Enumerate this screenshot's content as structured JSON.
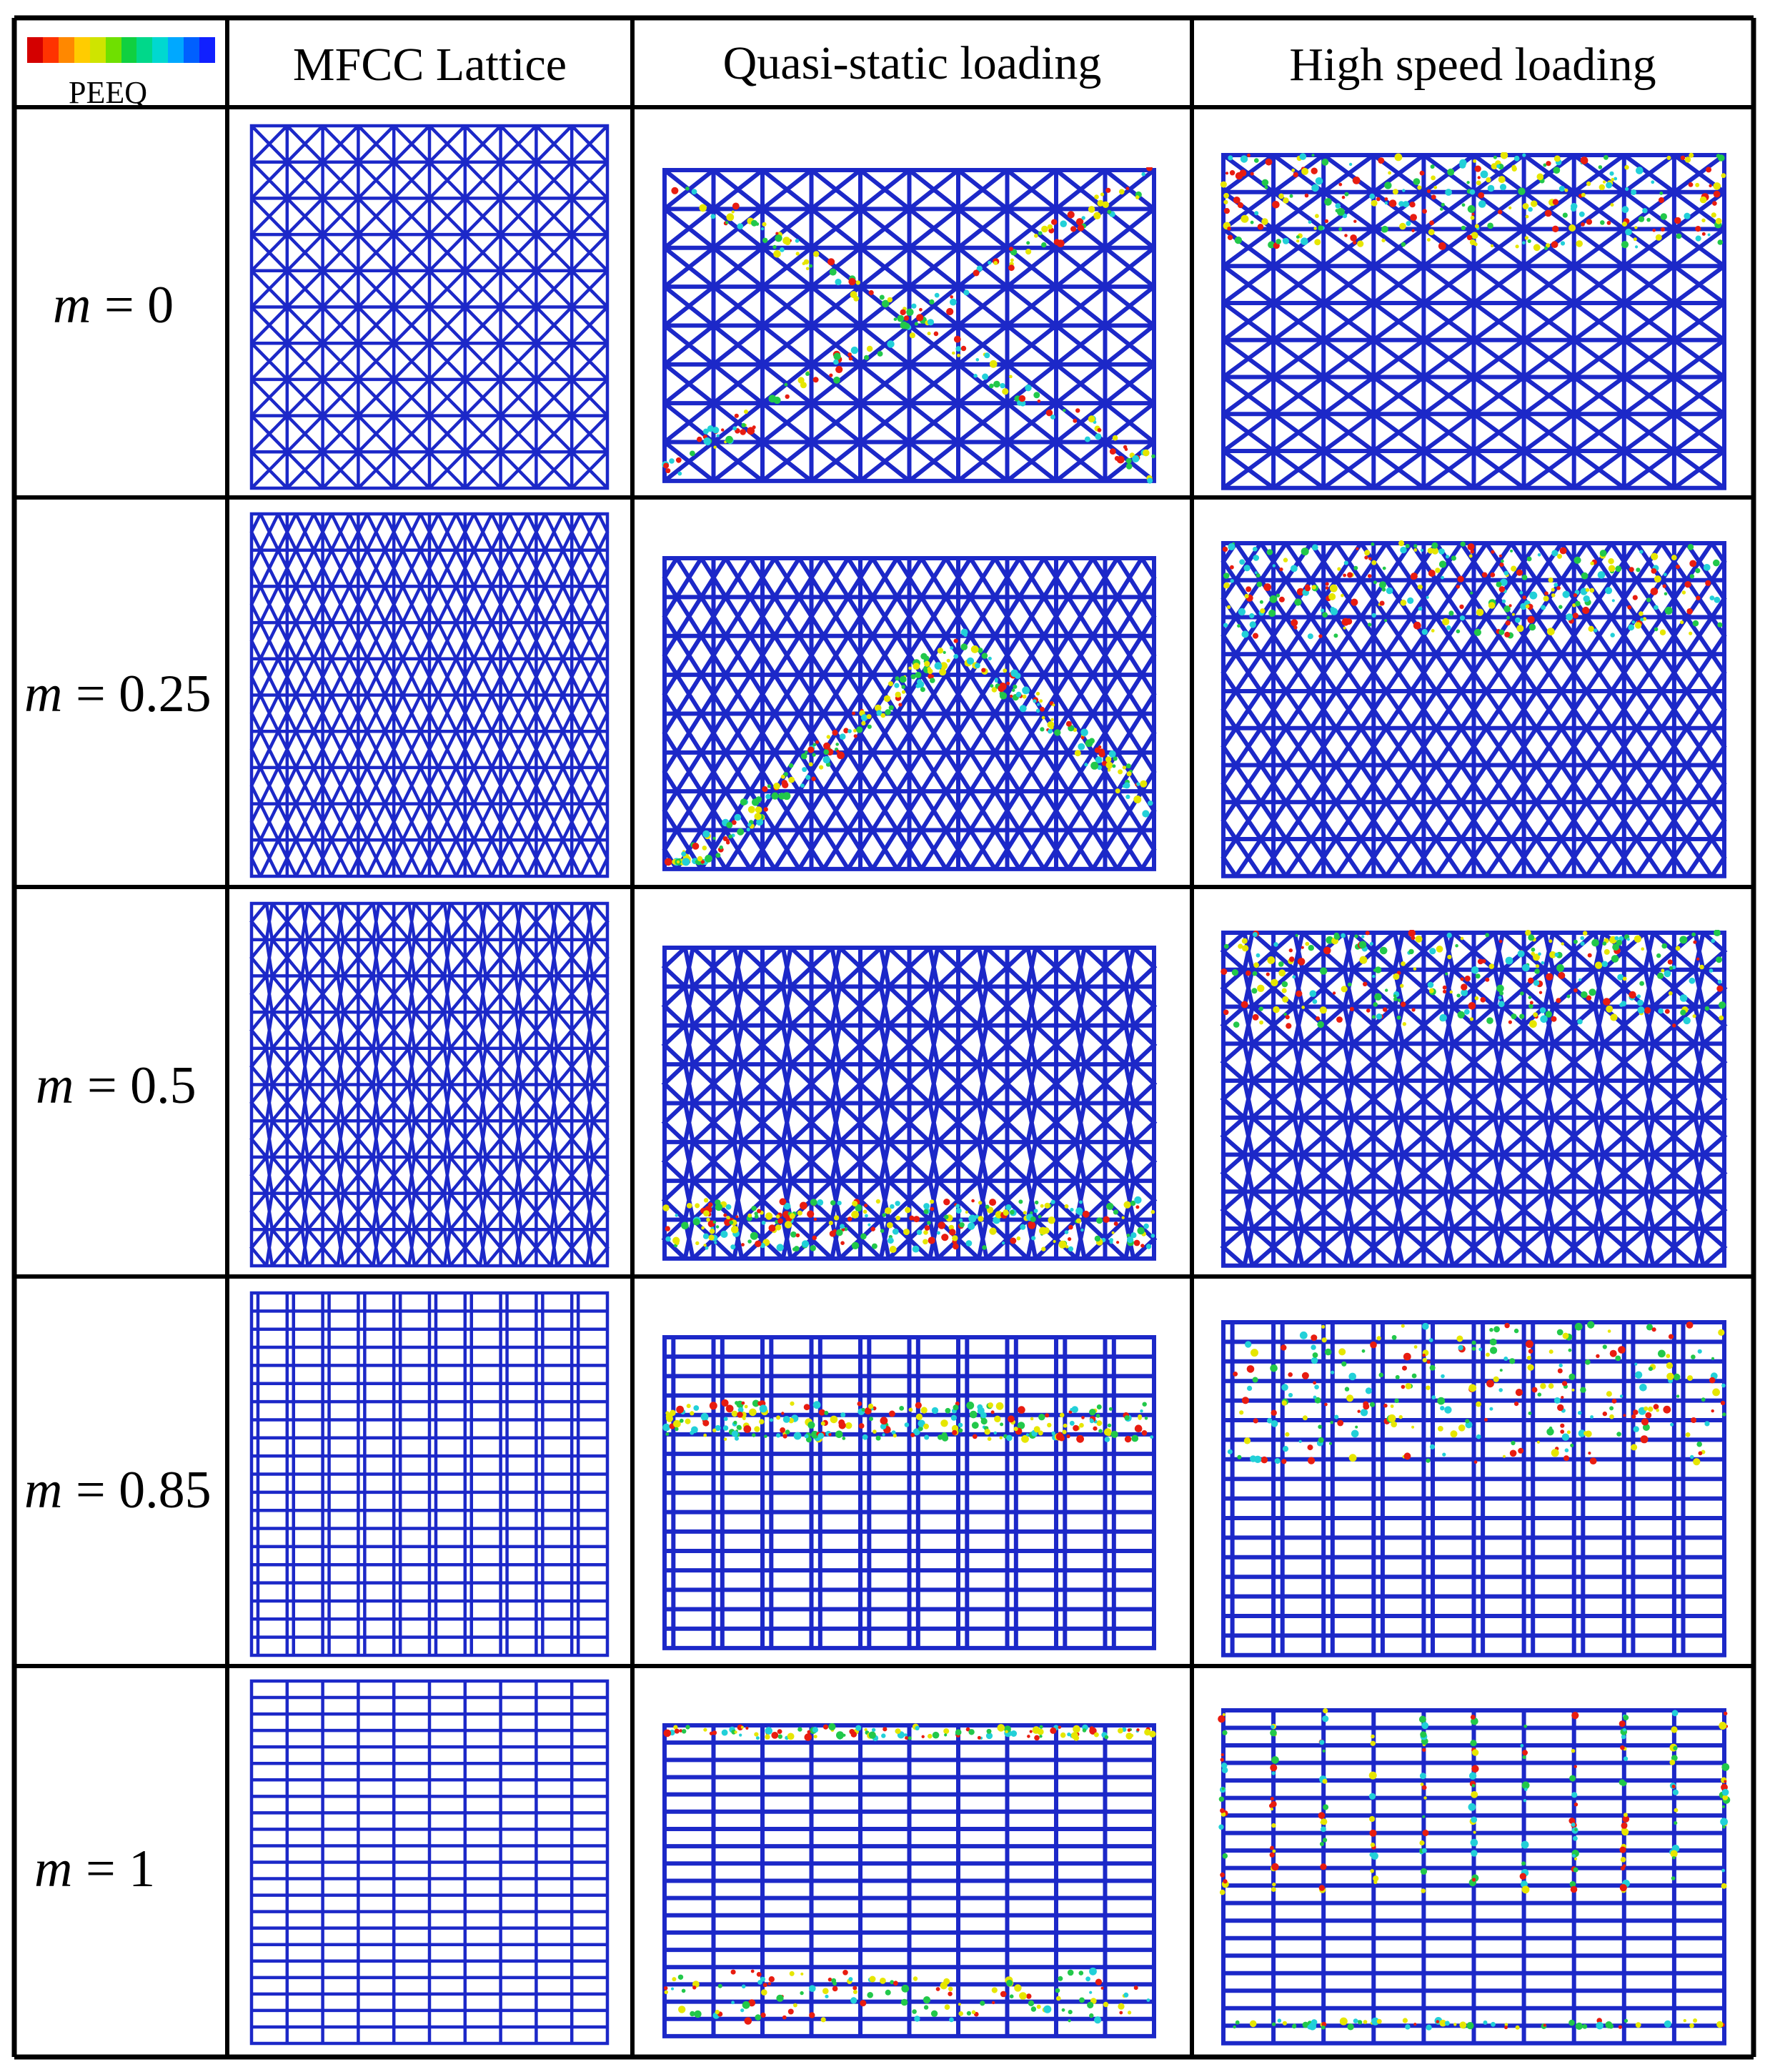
{
  "legend": {
    "label": "PEEQ",
    "colors": [
      "#d40000",
      "#ff3300",
      "#ff8800",
      "#ffcc00",
      "#cfe400",
      "#6fe000",
      "#10d040",
      "#00d88a",
      "#00d8d0",
      "#00a8ff",
      "#0060ff",
      "#1020ff"
    ]
  },
  "columns": [
    "MFCC Lattice",
    "Quasi-static loading",
    "High speed loading"
  ],
  "rows": [
    {
      "symbol": "m",
      "value": "= 0"
    },
    {
      "symbol": "m",
      "value": "= 0.25"
    },
    {
      "symbol": "m",
      "value": "= 0.5"
    },
    {
      "symbol": "m",
      "value": "= 0.85"
    },
    {
      "symbol": "m",
      "value": "= 1"
    }
  ],
  "colors": {
    "lattice": "#1c28c8",
    "hot_red": "#e81c10",
    "hot_yellow": "#e6e600",
    "hot_green": "#22c84a",
    "hot_cyan": "#22d0d8",
    "border": "#000000"
  }
}
